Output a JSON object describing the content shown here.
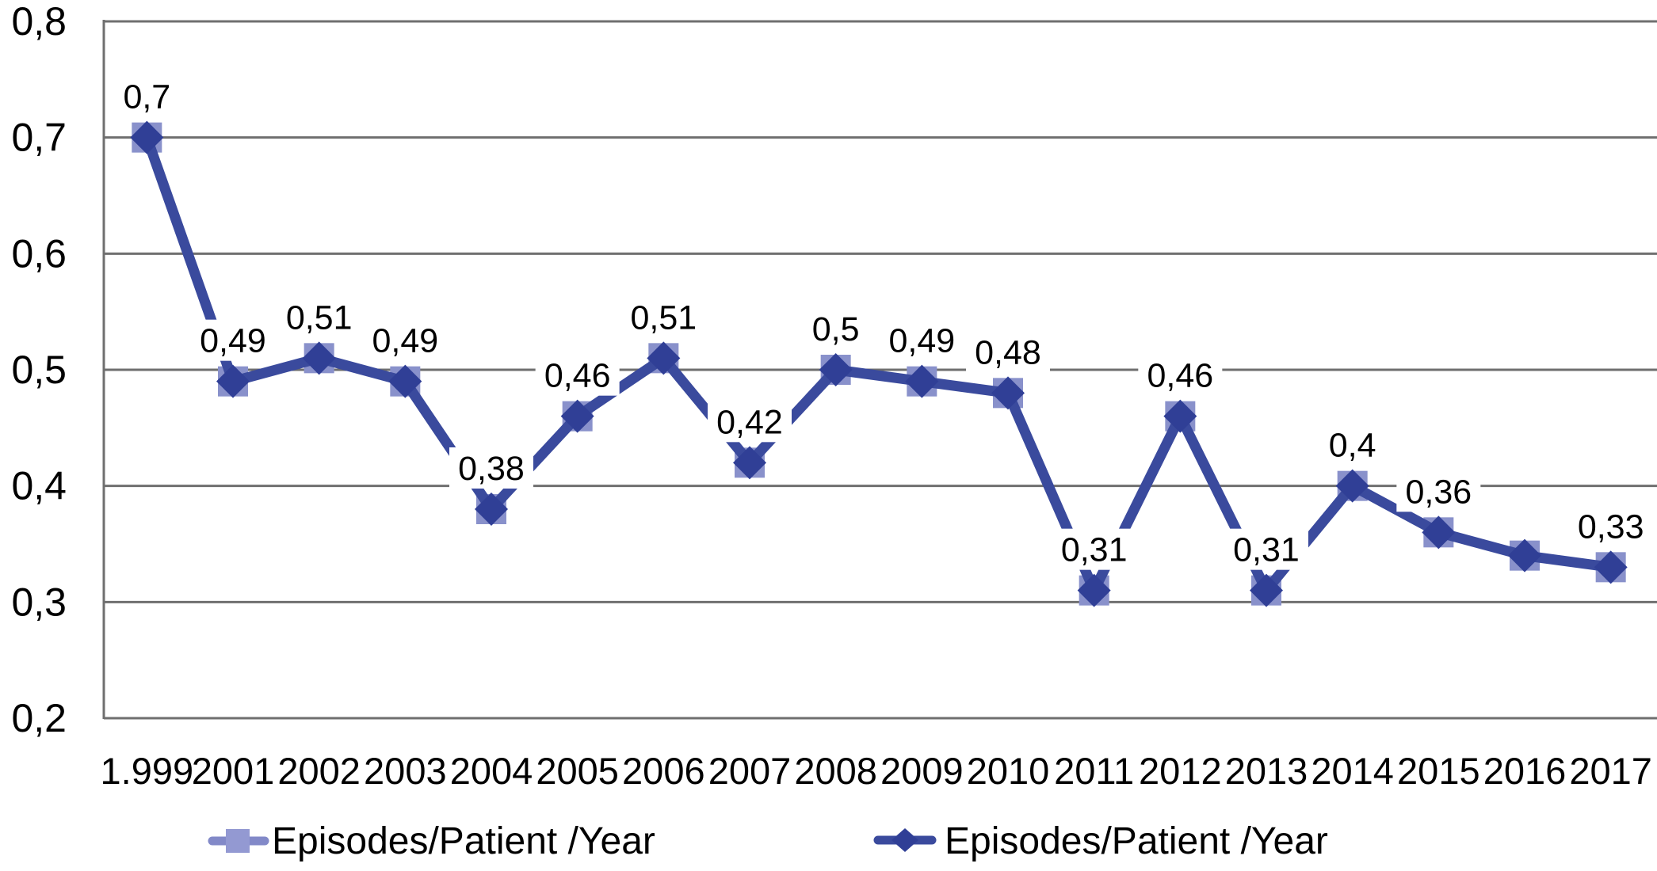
{
  "chart_data": {
    "type": "line",
    "title": "",
    "categories": [
      "1.999",
      "2001",
      "2002",
      "2003",
      "2004",
      "2005",
      "2006",
      "2007",
      "2008",
      "2009",
      "2010",
      "2011",
      "2012",
      "2013",
      "2014",
      "2015",
      "2016",
      "2017"
    ],
    "series": [
      {
        "name": "Episodes/Patient /Year",
        "marker": "square",
        "color": "#8991CB",
        "values": [
          0.7,
          0.49,
          0.51,
          0.49,
          0.38,
          0.46,
          0.51,
          0.42,
          0.5,
          0.49,
          0.48,
          0.31,
          0.46,
          0.31,
          0.4,
          0.36,
          0.34,
          0.33
        ]
      },
      {
        "name": "Episodes/Patient /Year",
        "marker": "diamond",
        "color": "#3A4A9D",
        "values": [
          0.7,
          0.49,
          0.51,
          0.49,
          0.38,
          0.46,
          0.51,
          0.42,
          0.5,
          0.49,
          0.48,
          0.31,
          0.46,
          0.31,
          0.4,
          0.36,
          0.34,
          0.33
        ]
      }
    ],
    "data_labels": [
      "0,7",
      "0,49",
      "0,51",
      "0,49",
      "0,38",
      "0,46",
      "0,51",
      "0,42",
      "0,5",
      "0,49",
      "0,48",
      "0,31",
      "0,46",
      "0,31",
      "0,4",
      "0,36",
      "",
      "0,33"
    ],
    "y_tick_labels": [
      "0,2",
      "0,3",
      "0,4",
      "0,5",
      "0,6",
      "0,7",
      "0,8"
    ],
    "ylim": [
      0.2,
      0.8
    ],
    "y_step": 0.1,
    "xlabel": "",
    "ylabel": "",
    "grid": "horizontal",
    "legend_position": "bottom",
    "decimal_separator": ",",
    "colors": {
      "line": "#3A4A9D",
      "diamond": "#303F96",
      "square": "#8991CB",
      "legend_square": "#9399D2",
      "legend_light_line": "#8289C8",
      "gridline": "#6F6F6F",
      "text": "#000000",
      "label_bg": "#FFFFFF"
    }
  }
}
